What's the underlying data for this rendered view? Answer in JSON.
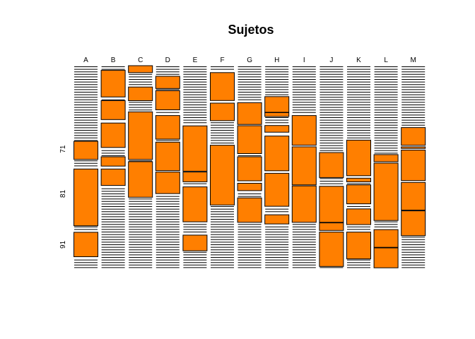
{
  "chart_data": {
    "type": "mosaic",
    "title": "Sujetos",
    "columns": [
      "A",
      "B",
      "C",
      "D",
      "E",
      "F",
      "G",
      "H",
      "I",
      "J",
      "K",
      "L",
      "M"
    ],
    "row_labels": [
      "71",
      "81",
      "91"
    ],
    "fill_color": "#FF7F00",
    "line_color": "#000000",
    "cells": [
      {
        "col": "A",
        "y0": 0.372,
        "y1": 0.461
      },
      {
        "col": "A",
        "y0": 0.508,
        "y1": 0.787
      },
      {
        "col": "A",
        "y0": 0.819,
        "y1": 0.939
      },
      {
        "col": "B",
        "y0": 0.023,
        "y1": 0.154
      },
      {
        "col": "B",
        "y0": 0.172,
        "y1": 0.265
      },
      {
        "col": "B",
        "y0": 0.282,
        "y1": 0.402
      },
      {
        "col": "B",
        "y0": 0.448,
        "y1": 0.494
      },
      {
        "col": "B",
        "y0": 0.508,
        "y1": 0.589
      },
      {
        "col": "C",
        "y0": 0.0,
        "y1": 0.034
      },
      {
        "col": "C",
        "y0": 0.105,
        "y1": 0.172
      },
      {
        "col": "C",
        "y0": 0.227,
        "y1": 0.461
      },
      {
        "col": "C",
        "y0": 0.472,
        "y1": 0.647
      },
      {
        "col": "D",
        "y0": 0.052,
        "y1": 0.112
      },
      {
        "col": "D",
        "y0": 0.123,
        "y1": 0.217
      },
      {
        "col": "D",
        "y0": 0.245,
        "y1": 0.361
      },
      {
        "col": "D",
        "y0": 0.376,
        "y1": 0.516
      },
      {
        "col": "D",
        "y0": 0.523,
        "y1": 0.629
      },
      {
        "col": "E",
        "y0": 0.296,
        "y1": 0.519
      },
      {
        "col": "E",
        "y0": 0.523,
        "y1": 0.571
      },
      {
        "col": "E",
        "y0": 0.596,
        "y1": 0.768
      },
      {
        "col": "E",
        "y0": 0.833,
        "y1": 0.91
      },
      {
        "col": "F",
        "y0": 0.034,
        "y1": 0.171
      },
      {
        "col": "F",
        "y0": 0.184,
        "y1": 0.27
      },
      {
        "col": "F",
        "y0": 0.391,
        "y1": 0.685
      },
      {
        "col": "G",
        "y0": 0.182,
        "y1": 0.289
      },
      {
        "col": "G",
        "y0": 0.295,
        "y1": 0.432
      },
      {
        "col": "G",
        "y0": 0.448,
        "y1": 0.566
      },
      {
        "col": "G",
        "y0": 0.578,
        "y1": 0.614
      },
      {
        "col": "G",
        "y0": 0.65,
        "y1": 0.77
      },
      {
        "col": "H",
        "y0": 0.152,
        "y1": 0.229
      },
      {
        "col": "H",
        "y0": 0.231,
        "y1": 0.25
      },
      {
        "col": "H",
        "y0": 0.294,
        "y1": 0.327
      },
      {
        "col": "H",
        "y0": 0.346,
        "y1": 0.517
      },
      {
        "col": "H",
        "y0": 0.529,
        "y1": 0.691
      },
      {
        "col": "H",
        "y0": 0.733,
        "y1": 0.778
      },
      {
        "col": "I",
        "y0": 0.245,
        "y1": 0.391
      },
      {
        "col": "I",
        "y0": 0.399,
        "y1": 0.586
      },
      {
        "col": "I",
        "y0": 0.591,
        "y1": 0.77
      },
      {
        "col": "J",
        "y0": 0.427,
        "y1": 0.55
      },
      {
        "col": "J",
        "y0": 0.593,
        "y1": 0.77
      },
      {
        "col": "J",
        "y0": 0.773,
        "y1": 0.81
      },
      {
        "col": "J",
        "y0": 0.818,
        "y1": 0.987
      },
      {
        "col": "K",
        "y0": 0.366,
        "y1": 0.541
      },
      {
        "col": "K",
        "y0": 0.553,
        "y1": 0.571
      },
      {
        "col": "K",
        "y0": 0.586,
        "y1": 0.679
      },
      {
        "col": "K",
        "y0": 0.704,
        "y1": 0.781
      },
      {
        "col": "K",
        "y0": 0.818,
        "y1": 0.95
      },
      {
        "col": "L",
        "y0": 0.437,
        "y1": 0.472
      },
      {
        "col": "L",
        "y0": 0.479,
        "y1": 0.761
      },
      {
        "col": "L",
        "y0": 0.806,
        "y1": 0.893
      },
      {
        "col": "L",
        "y0": 0.896,
        "y1": 0.994
      },
      {
        "col": "M",
        "y0": 0.304,
        "y1": 0.391
      },
      {
        "col": "M",
        "y0": 0.399,
        "y1": 0.407
      },
      {
        "col": "M",
        "y0": 0.415,
        "y1": 0.565
      },
      {
        "col": "M",
        "y0": 0.574,
        "y1": 0.71
      },
      {
        "col": "M",
        "y0": 0.714,
        "y1": 0.836
      }
    ]
  }
}
